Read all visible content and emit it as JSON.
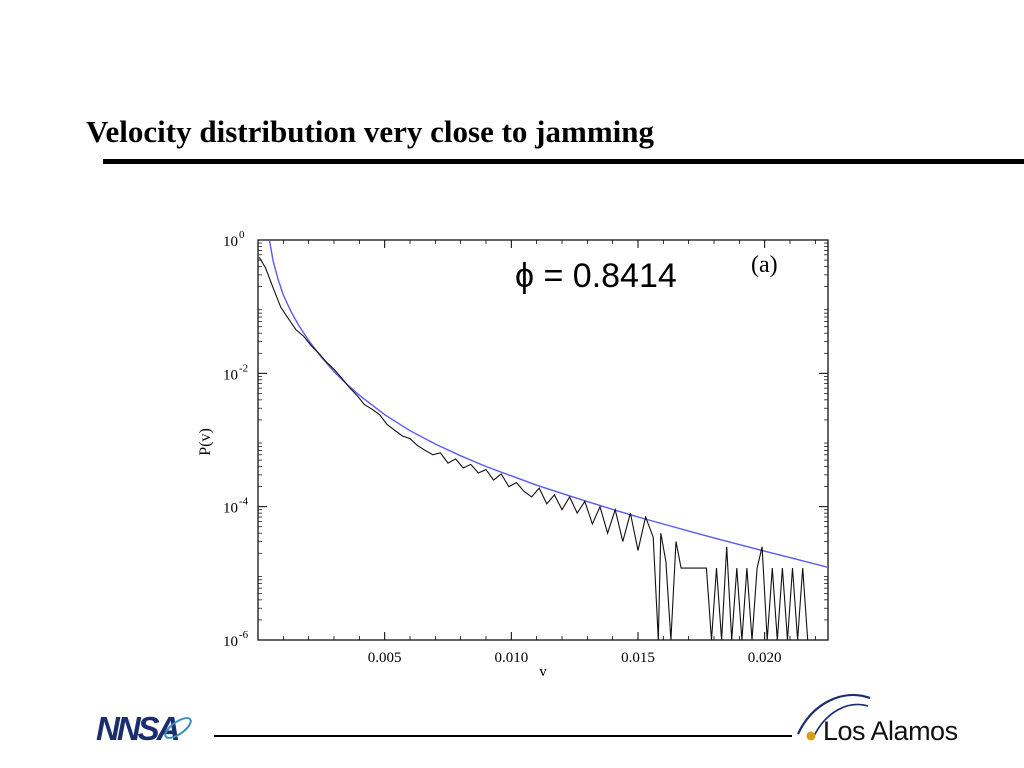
{
  "slide": {
    "title": "Velocity distribution very close to jamming"
  },
  "footer": {
    "left_logo_text": "NNSA",
    "right_logo_text": "Los Alamos"
  },
  "colors": {
    "data_line": "#111111",
    "fit_line": "#5b5bf0",
    "accent_navy": "#1b2d6e",
    "accent_teal": "#3b8fb5"
  },
  "chart_data": {
    "type": "line",
    "xlabel": "v",
    "ylabel": "P(v)",
    "xlim": [
      0,
      0.0225
    ],
    "ylim": [
      1e-06,
      1
    ],
    "yscale": "log",
    "x_ticks": [
      0.005,
      0.01,
      0.015,
      0.02
    ],
    "x_tick_labels": [
      "0.005",
      "0.010",
      "0.015",
      "0.020"
    ],
    "y_ticks": [
      1,
      0.01,
      0.0001,
      1e-06
    ],
    "y_tick_labels": [
      {
        "base": "10",
        "exp": "0"
      },
      {
        "base": "10",
        "exp": "-2"
      },
      {
        "base": "10",
        "exp": "-4"
      },
      {
        "base": "10",
        "exp": "-6"
      }
    ],
    "annotation": "ϕ = 0.8414",
    "panel_label": "(a)",
    "grid": false,
    "series": [
      {
        "kind": "data",
        "values": [
          [
            5e-05,
            0.55
          ],
          [
            0.0003,
            0.38
          ],
          [
            0.0006,
            0.19
          ],
          [
            0.0009,
            0.098
          ],
          [
            0.0012,
            0.066
          ],
          [
            0.0015,
            0.045
          ],
          [
            0.0018,
            0.036
          ],
          [
            0.0021,
            0.026
          ],
          [
            0.0024,
            0.02
          ],
          [
            0.0027,
            0.0148
          ],
          [
            0.003,
            0.0115
          ],
          [
            0.0033,
            0.0085
          ],
          [
            0.0036,
            0.0062
          ],
          [
            0.0039,
            0.0047
          ],
          [
            0.0042,
            0.0034
          ],
          [
            0.0045,
            0.0029
          ],
          [
            0.0048,
            0.0024
          ],
          [
            0.0051,
            0.0017
          ],
          [
            0.0054,
            0.0014
          ],
          [
            0.0057,
            0.00115
          ],
          [
            0.006,
            0.00105
          ],
          [
            0.0063,
            0.00082
          ],
          [
            0.0066,
            0.0007
          ],
          [
            0.0069,
            0.0006
          ],
          [
            0.0072,
            0.00064
          ],
          [
            0.0075,
            0.00045
          ],
          [
            0.0078,
            0.00052
          ],
          [
            0.0081,
            0.00038
          ],
          [
            0.0084,
            0.00043
          ],
          [
            0.0087,
            0.00032
          ],
          [
            0.009,
            0.00036
          ],
          [
            0.0093,
            0.00025
          ],
          [
            0.0096,
            0.00031
          ],
          [
            0.0099,
            0.0002
          ],
          [
            0.0102,
            0.00023
          ],
          [
            0.0105,
            0.00017
          ],
          [
            0.0108,
            0.00014
          ],
          [
            0.0111,
            0.00019
          ],
          [
            0.0114,
            0.00011
          ],
          [
            0.0117,
            0.00015
          ],
          [
            0.012,
            9e-05
          ],
          [
            0.0123,
            0.00014
          ],
          [
            0.0126,
            8e-05
          ],
          [
            0.0129,
            0.00012
          ],
          [
            0.0132,
            5.5e-05
          ],
          [
            0.0135,
            0.0001
          ],
          [
            0.0138,
            4e-05
          ],
          [
            0.0141,
            9e-05
          ],
          [
            0.0144,
            3e-05
          ],
          [
            0.0147,
            8e-05
          ],
          [
            0.015,
            2.2e-05
          ],
          [
            0.0153,
            7e-05
          ],
          [
            0.0156,
            3.5e-05
          ],
          [
            0.0158,
            1e-06
          ],
          [
            0.0159,
            4e-05
          ],
          [
            0.0161,
            1.5e-05
          ],
          [
            0.0163,
            1e-06
          ],
          [
            0.0165,
            3e-05
          ],
          [
            0.0167,
            1.2e-05
          ],
          [
            0.017,
            1.2e-05
          ],
          [
            0.0174,
            1.2e-05
          ],
          [
            0.0177,
            1.2e-05
          ],
          [
            0.0179,
            1e-06
          ],
          [
            0.0181,
            1.2e-05
          ],
          [
            0.0183,
            1e-06
          ],
          [
            0.0185,
            2.5e-05
          ],
          [
            0.0187,
            1e-06
          ],
          [
            0.0189,
            1.2e-05
          ],
          [
            0.0191,
            1e-06
          ],
          [
            0.0193,
            1.2e-05
          ],
          [
            0.0195,
            1e-06
          ],
          [
            0.0197,
            1.2e-05
          ],
          [
            0.0199,
            2.5e-05
          ],
          [
            0.0201,
            1e-06
          ],
          [
            0.0203,
            1.2e-05
          ],
          [
            0.0205,
            1e-06
          ],
          [
            0.0207,
            1.2e-05
          ],
          [
            0.0209,
            1e-06
          ],
          [
            0.0211,
            1.2e-05
          ],
          [
            0.0213,
            1e-06
          ],
          [
            0.0215,
            1.2e-05
          ],
          [
            0.0217,
            1e-06
          ]
        ]
      },
      {
        "kind": "fit",
        "values": [
          [
            0.00045,
            1.0
          ],
          [
            0.0006,
            0.48
          ],
          [
            0.0008,
            0.25
          ],
          [
            0.001,
            0.15
          ],
          [
            0.0013,
            0.085
          ],
          [
            0.0016,
            0.053
          ],
          [
            0.002,
            0.031
          ],
          [
            0.0025,
            0.0175
          ],
          [
            0.003,
            0.0106
          ],
          [
            0.0035,
            0.0069
          ],
          [
            0.004,
            0.0047
          ],
          [
            0.005,
            0.0024
          ],
          [
            0.006,
            0.00138
          ],
          [
            0.007,
            0.00087
          ],
          [
            0.008,
            0.00058
          ],
          [
            0.009,
            0.0004
          ],
          [
            0.01,
            0.00029
          ],
          [
            0.011,
            0.00021
          ],
          [
            0.012,
            0.000158
          ],
          [
            0.013,
            0.000119
          ],
          [
            0.014,
            9.1e-05
          ],
          [
            0.015,
            7e-05
          ],
          [
            0.016,
            5.5e-05
          ],
          [
            0.017,
            4.3e-05
          ],
          [
            0.018,
            3.4e-05
          ],
          [
            0.019,
            2.7e-05
          ],
          [
            0.02,
            2.15e-05
          ],
          [
            0.021,
            1.72e-05
          ],
          [
            0.0225,
            1.23e-05
          ]
        ]
      }
    ]
  }
}
